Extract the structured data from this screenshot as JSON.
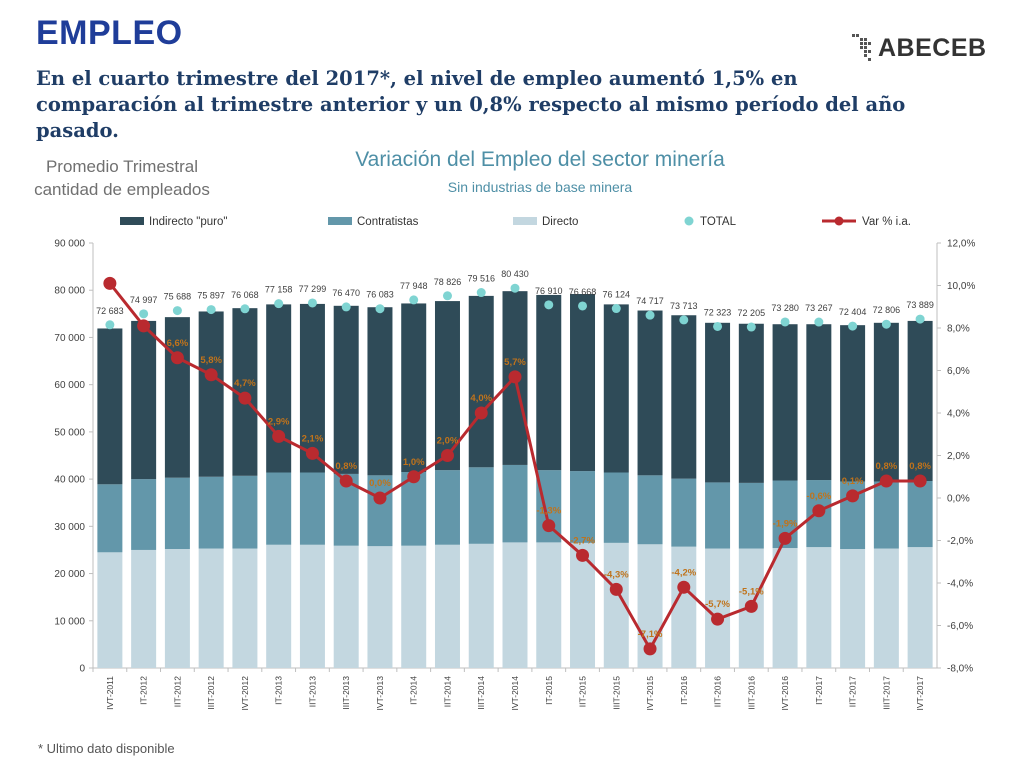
{
  "header": {
    "title": "EMPLEO",
    "headline": "En el cuarto trimestre del 2017*, el nivel de empleo aumentó 1,5% en comparación al trimestre anterior y un 0,8% respecto al mismo período del año pasado.",
    "logo_text": "ABECEB",
    "side_note_line1": "Promedio Trimestral",
    "side_note_line2": "cantidad de empleados"
  },
  "footer": {
    "note": "* Ultimo dato disponible"
  },
  "colors": {
    "indirecto": "#2f4b58",
    "contratistas": "#6397aa",
    "directo": "#c3d7e0",
    "total": "#7fd4d2",
    "var": "#b92a2f",
    "pct_label": "#c0731b"
  },
  "chart_data": {
    "type": "bar",
    "stacked": true,
    "title": "Variación del Empleo del sector minería",
    "subtitle": "Sin industrias de base minera",
    "legend_position": "top",
    "categories": [
      "IVT-2011",
      "IT-2012",
      "IIT-2012",
      "IIIT-2012",
      "IVT-2012",
      "IT-2013",
      "IIT-2013",
      "IIIT-2013",
      "IVT-2013",
      "IT-2014",
      "IIT-2014",
      "IIIT-2014",
      "IVT-2014",
      "IT-2015",
      "IIT-2015",
      "IIIT-2015",
      "IVT-2015",
      "IT-2016",
      "IIT-2016",
      "IIIT-2016",
      "IVT-2016",
      "IT-2017",
      "IIT-2017",
      "IIIT-2017",
      "IVT-2017"
    ],
    "series": [
      {
        "name": "Directo",
        "values": [
          24500,
          25000,
          25200,
          25300,
          25300,
          26100,
          26100,
          25900,
          25800,
          25900,
          26100,
          26300,
          26600,
          26600,
          26500,
          26500,
          26200,
          25700,
          25300,
          25300,
          25400,
          25600,
          25200,
          25300,
          25600
        ]
      },
      {
        "name": "Contratistas",
        "values": [
          14400,
          15000,
          15100,
          15200,
          15400,
          15300,
          15300,
          15200,
          15000,
          15600,
          15800,
          16200,
          16400,
          15300,
          15200,
          14900,
          14600,
          14400,
          14000,
          13900,
          14300,
          14200,
          14300,
          14200,
          14000
        ]
      },
      {
        "name": "Indirecto \"puro\"",
        "values": [
          33000,
          33500,
          34000,
          35000,
          35500,
          35600,
          35700,
          35600,
          35600,
          35700,
          35800,
          36300,
          36800,
          37100,
          37500,
          35600,
          34900,
          34600,
          33800,
          33700,
          33100,
          33000,
          33100,
          33600,
          33900
        ]
      }
    ],
    "total": {
      "name": "TOTAL",
      "values": [
        72683,
        74997,
        75688,
        75897,
        76068,
        77158,
        77299,
        76470,
        76083,
        77948,
        78826,
        79516,
        80430,
        76910,
        76668,
        76124,
        74717,
        73713,
        72323,
        72205,
        73280,
        73267,
        72404,
        72806,
        73889
      ],
      "labels": [
        "72 683",
        "74 997",
        "75 688",
        "75 897",
        "76 068",
        "77 158",
        "77 299",
        "76 470",
        "76 083",
        "77 948",
        "78 826",
        "79 516",
        "80 430",
        "76 910",
        "76 668",
        "76 124",
        "74 717",
        "73 713",
        "72 323",
        "72 205",
        "73 280",
        "73 267",
        "72 404",
        "72 806",
        "73 889"
      ]
    },
    "var_ia": {
      "name": "Var % i.a.",
      "axis": "right",
      "values": [
        10.1,
        8.1,
        6.6,
        5.8,
        4.7,
        2.9,
        2.1,
        0.8,
        0.0,
        1.0,
        2.0,
        4.0,
        5.7,
        -1.3,
        -2.7,
        -4.3,
        -7.1,
        -4.2,
        -5.7,
        -5.1,
        -1.9,
        -0.6,
        0.1,
        0.8,
        0.8
      ],
      "labels": [
        "",
        "",
        "6,6%",
        "5,8%",
        "4,7%",
        "2,9%",
        "2,1%",
        "0,8%",
        "0,0%",
        "1,0%",
        "2,0%",
        "4,0%",
        "5,7%",
        "-1,3%",
        "-2,7%",
        "-4,3%",
        "-7,1%",
        "-4,2%",
        "-5,7%",
        "-5,1%",
        "-1,9%",
        "-0,6%",
        "0,1%",
        "0,8%",
        "0,8%"
      ]
    },
    "ylim": [
      0,
      90000
    ],
    "y2lim": [
      -8,
      12
    ],
    "yticks": [
      "0",
      "10 000",
      "20 000",
      "30 000",
      "40 000",
      "50 000",
      "60 000",
      "70 000",
      "80 000",
      "90 000"
    ],
    "y2ticks": [
      "-8,0%",
      "-6,0%",
      "-4,0%",
      "-2,0%",
      "0,0%",
      "2,0%",
      "4,0%",
      "6,0%",
      "8,0%",
      "10,0%",
      "12,0%"
    ],
    "legend": [
      "Indirecto \"puro\"",
      "Contratistas",
      "Directo",
      "TOTAL",
      "Var % i.a."
    ]
  }
}
